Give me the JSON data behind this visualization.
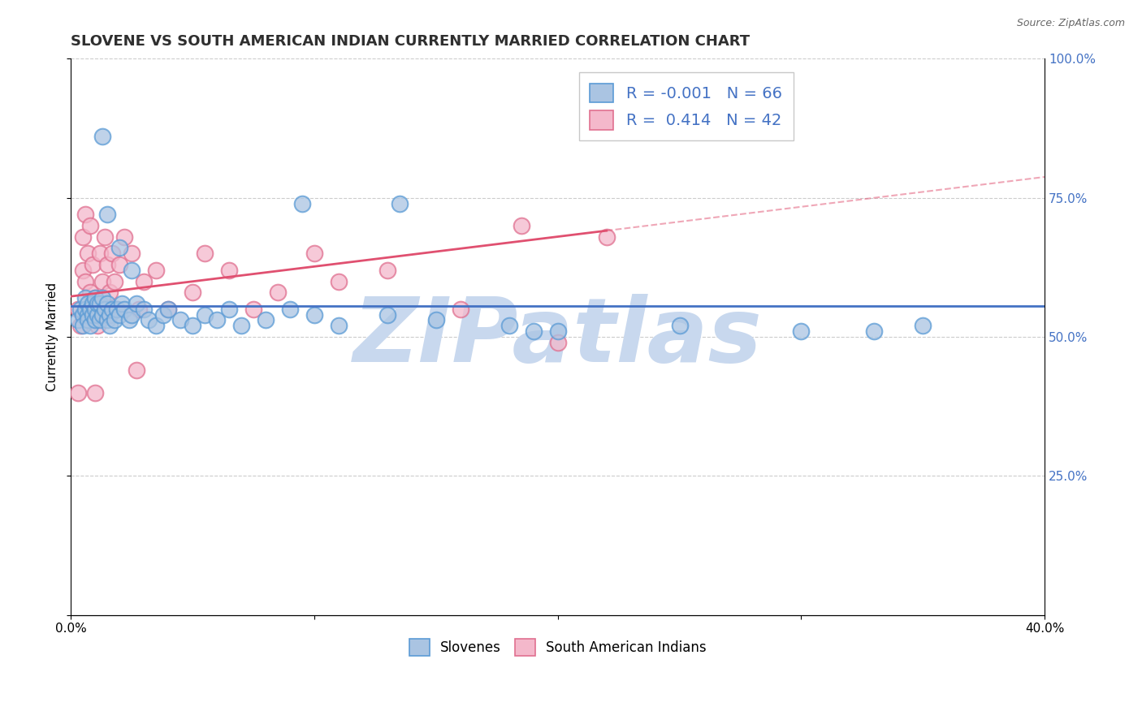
{
  "title": "SLOVENE VS SOUTH AMERICAN INDIAN CURRENTLY MARRIED CORRELATION CHART",
  "source": "Source: ZipAtlas.com",
  "ylabel": "Currently Married",
  "xlim": [
    0.0,
    0.4
  ],
  "ylim": [
    0.0,
    1.0
  ],
  "xticks": [
    0.0,
    0.1,
    0.2,
    0.3,
    0.4
  ],
  "xticklabels": [
    "0.0%",
    "",
    "",
    "",
    "40.0%"
  ],
  "yticks": [
    0.0,
    0.25,
    0.5,
    0.75,
    1.0
  ],
  "right_yticklabels": [
    "",
    "25.0%",
    "50.0%",
    "75.0%",
    "100.0%"
  ],
  "slovene_R": -0.001,
  "slovene_N": 66,
  "sai_R": 0.414,
  "sai_N": 42,
  "slovene_dot_color": "#aac4e2",
  "slovene_edge_color": "#5b9bd5",
  "sai_dot_color": "#f4b8cb",
  "sai_edge_color": "#e07090",
  "slovene_line_color": "#4472c4",
  "sai_line_color": "#e05070",
  "sai_line_solid_x_max": 0.22,
  "watermark": "ZIPatlas",
  "watermark_color": "#c8d8ee",
  "grid_color": "#cccccc",
  "background_color": "#ffffff",
  "title_fontsize": 13,
  "axis_label_fontsize": 11,
  "tick_fontsize": 11,
  "right_ytick_color": "#4472c4",
  "slovene_x": [
    0.003,
    0.004,
    0.005,
    0.005,
    0.006,
    0.006,
    0.007,
    0.007,
    0.007,
    0.008,
    0.008,
    0.009,
    0.009,
    0.01,
    0.01,
    0.01,
    0.011,
    0.011,
    0.012,
    0.012,
    0.013,
    0.013,
    0.014,
    0.015,
    0.015,
    0.016,
    0.016,
    0.017,
    0.018,
    0.019,
    0.02,
    0.021,
    0.022,
    0.024,
    0.025,
    0.027,
    0.03,
    0.032,
    0.035,
    0.038,
    0.04,
    0.045,
    0.05,
    0.055,
    0.06,
    0.065,
    0.07,
    0.08,
    0.09,
    0.1,
    0.11,
    0.13,
    0.15,
    0.18,
    0.2,
    0.25,
    0.3,
    0.35,
    0.013,
    0.015,
    0.02,
    0.025,
    0.095,
    0.135,
    0.19,
    0.33
  ],
  "slovene_y": [
    0.53,
    0.55,
    0.54,
    0.52,
    0.57,
    0.55,
    0.54,
    0.53,
    0.56,
    0.52,
    0.55,
    0.54,
    0.56,
    0.53,
    0.55,
    0.57,
    0.54,
    0.56,
    0.53,
    0.56,
    0.54,
    0.57,
    0.55,
    0.53,
    0.56,
    0.54,
    0.52,
    0.55,
    0.53,
    0.55,
    0.54,
    0.56,
    0.55,
    0.53,
    0.54,
    0.56,
    0.55,
    0.53,
    0.52,
    0.54,
    0.55,
    0.53,
    0.52,
    0.54,
    0.53,
    0.55,
    0.52,
    0.53,
    0.55,
    0.54,
    0.52,
    0.54,
    0.53,
    0.52,
    0.51,
    0.52,
    0.51,
    0.52,
    0.86,
    0.72,
    0.66,
    0.62,
    0.74,
    0.74,
    0.51,
    0.51
  ],
  "sai_x": [
    0.003,
    0.004,
    0.005,
    0.005,
    0.006,
    0.006,
    0.007,
    0.008,
    0.008,
    0.009,
    0.01,
    0.011,
    0.012,
    0.013,
    0.014,
    0.015,
    0.016,
    0.017,
    0.018,
    0.019,
    0.02,
    0.022,
    0.025,
    0.028,
    0.03,
    0.035,
    0.04,
    0.05,
    0.055,
    0.065,
    0.075,
    0.085,
    0.1,
    0.11,
    0.13,
    0.16,
    0.185,
    0.22,
    0.003,
    0.01,
    0.027,
    0.2
  ],
  "sai_y": [
    0.55,
    0.52,
    0.62,
    0.68,
    0.72,
    0.6,
    0.65,
    0.58,
    0.7,
    0.63,
    0.57,
    0.52,
    0.65,
    0.6,
    0.68,
    0.63,
    0.58,
    0.65,
    0.6,
    0.55,
    0.63,
    0.68,
    0.65,
    0.55,
    0.6,
    0.62,
    0.55,
    0.58,
    0.65,
    0.62,
    0.55,
    0.58,
    0.65,
    0.6,
    0.62,
    0.55,
    0.7,
    0.68,
    0.4,
    0.4,
    0.44,
    0.49
  ]
}
